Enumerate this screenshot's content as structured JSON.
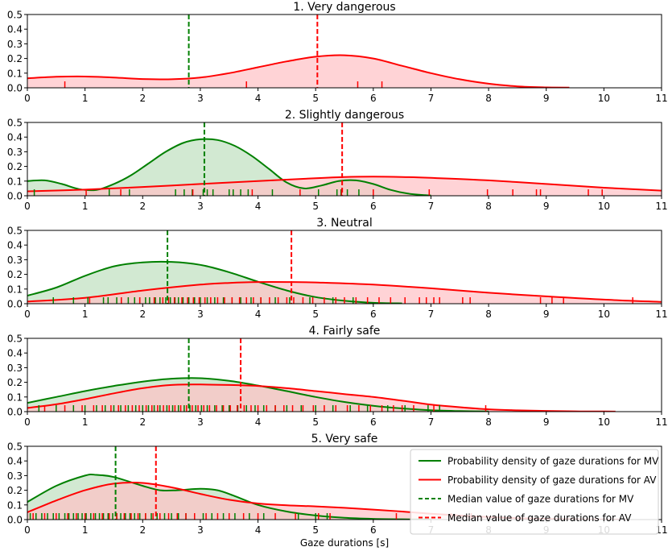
{
  "chart_data": {
    "type": "area",
    "xlabel": "Gaze durations [s]",
    "xlim": [
      0,
      11
    ],
    "ylim": [
      0,
      0.5
    ],
    "xticks": [
      0,
      1,
      2,
      3,
      4,
      5,
      6,
      7,
      8,
      9,
      10,
      11
    ],
    "yticks": [
      0.0,
      0.1,
      0.2,
      0.3,
      0.4,
      0.5
    ],
    "ytick_labels": [
      "0.0",
      "0.1",
      "0.2",
      "0.3",
      "0.4",
      "0.5"
    ],
    "colors": {
      "MV": "#008000",
      "AV": "#ff0000",
      "MV_fill": "#bfe0bf",
      "AV_fill": "#ffc0c4"
    },
    "legend": {
      "placement": "top-right of panel 5",
      "entries": [
        {
          "label": "Probability density of gaze durations for MV",
          "series": "MV",
          "style": "solid"
        },
        {
          "label": "Probability density of gaze durations for AV",
          "series": "AV",
          "style": "solid"
        },
        {
          "label": "Median value of gaze durations for MV",
          "series": "MV",
          "style": "dashed"
        },
        {
          "label": "Median value of gaze durations for AV",
          "series": "AV",
          "style": "dashed"
        }
      ]
    },
    "panels": [
      {
        "title": "1. Very dangerous",
        "series": [
          {
            "name": "AV",
            "median": 5.03,
            "x": [
              0,
              0.5,
              1,
              1.5,
              2,
              2.5,
              3,
              3.5,
              4,
              4.5,
              5,
              5.5,
              6,
              6.5,
              7,
              7.5,
              8,
              8.5,
              9,
              9.4
            ],
            "y": [
              0.065,
              0.075,
              0.077,
              0.07,
              0.06,
              0.058,
              0.07,
              0.1,
              0.14,
              0.18,
              0.212,
              0.222,
              0.2,
              0.15,
              0.1,
              0.058,
              0.028,
              0.01,
              0.003,
              0.001
            ],
            "rug": [
              0.65,
              3.8,
              5.73,
              6.15
            ]
          }
        ],
        "median_MV": 2.8
      },
      {
        "title": "2. Slightly dangerous",
        "series": [
          {
            "name": "MV",
            "median": 3.07,
            "x": [
              0,
              0.3,
              0.6,
              0.9,
              1.2,
              1.5,
              1.8,
              2.1,
              2.4,
              2.7,
              3.0,
              3.3,
              3.6,
              3.9,
              4.2,
              4.5,
              4.8,
              5.1,
              5.4,
              5.7,
              6.0,
              6.3,
              6.6,
              6.9,
              7.0
            ],
            "y": [
              0.1,
              0.105,
              0.08,
              0.045,
              0.04,
              0.08,
              0.14,
              0.22,
              0.3,
              0.36,
              0.385,
              0.38,
              0.34,
              0.27,
              0.18,
              0.09,
              0.05,
              0.07,
              0.1,
              0.105,
              0.08,
              0.04,
              0.015,
              0.004,
              0.002
            ],
            "rug": [
              0.12,
              1.42,
              1.77,
              2.57,
              2.72,
              2.86,
              3.05,
              3.12,
              3.22,
              3.5,
              3.57,
              3.7,
              3.83,
              4.25,
              5.05,
              5.37,
              5.44,
              5.55,
              5.75
            ]
          },
          {
            "name": "AV",
            "median": 5.46,
            "x": [
              0,
              1,
              2,
              3,
              4,
              5,
              5.5,
              6,
              6.5,
              7,
              8,
              9,
              10,
              11
            ],
            "y": [
              0.03,
              0.042,
              0.06,
              0.08,
              0.1,
              0.12,
              0.128,
              0.13,
              0.128,
              0.122,
              0.105,
              0.08,
              0.055,
              0.035
            ],
            "rug": [
              1.02,
              1.62,
              2.87,
              3.9,
              4.73,
              5.45,
              6.0,
              6.97,
              7.98,
              8.42,
              8.83,
              8.9,
              9.73,
              9.97
            ]
          }
        ]
      },
      {
        "title": "3. Neutral",
        "series": [
          {
            "name": "MV",
            "median": 2.43,
            "x": [
              0,
              0.5,
              1,
              1.5,
              2,
              2.5,
              3,
              3.5,
              4,
              4.5,
              5,
              5.5,
              6,
              6.5
            ],
            "y": [
              0.055,
              0.11,
              0.19,
              0.255,
              0.282,
              0.285,
              0.265,
              0.215,
              0.15,
              0.09,
              0.045,
              0.02,
              0.006,
              0.002
            ],
            "rug": [
              0.45,
              0.8,
              1.05,
              1.32,
              1.4,
              1.55,
              1.63,
              1.75,
              1.86,
              1.95,
              2.05,
              2.12,
              2.22,
              2.3,
              2.4,
              2.48,
              2.56,
              2.62,
              2.7,
              2.8,
              2.9,
              3.0,
              3.12,
              3.25,
              3.4,
              3.55,
              3.7,
              3.88,
              4.05,
              4.3,
              4.55,
              4.9,
              5.3,
              5.65
            ]
          },
          {
            "name": "AV",
            "median": 4.58,
            "x": [
              0,
              1,
              2,
              3,
              3.5,
              4,
              4.5,
              5,
              6,
              7,
              8,
              9,
              10,
              11
            ],
            "y": [
              0.015,
              0.04,
              0.09,
              0.13,
              0.142,
              0.148,
              0.148,
              0.145,
              0.13,
              0.105,
              0.075,
              0.05,
              0.028,
              0.012
            ],
            "rug": [
              1.08,
              1.63,
              1.95,
              2.2,
              2.35,
              2.45,
              2.55,
              2.68,
              2.78,
              2.88,
              2.98,
              3.08,
              3.18,
              3.3,
              3.42,
              3.55,
              3.68,
              3.8,
              3.92,
              4.05,
              4.2,
              4.35,
              4.5,
              4.62,
              4.78,
              4.95,
              5.15,
              5.35,
              5.5,
              5.7,
              5.9,
              6.1,
              6.3,
              6.55,
              6.8,
              6.92,
              7.05,
              7.15,
              7.55,
              7.68,
              8.9,
              9.1,
              9.3,
              10.5
            ]
          }
        ]
      },
      {
        "title": "4. Fairly safe",
        "series": [
          {
            "name": "MV",
            "median": 2.8,
            "x": [
              0,
              0.5,
              1,
              1.5,
              2,
              2.5,
              3,
              3.5,
              4,
              4.5,
              5,
              5.5,
              6,
              6.5,
              7,
              7.5,
              8
            ],
            "y": [
              0.06,
              0.1,
              0.14,
              0.175,
              0.205,
              0.225,
              0.228,
              0.21,
              0.178,
              0.14,
              0.1,
              0.066,
              0.04,
              0.022,
              0.01,
              0.004,
              0.001
            ],
            "rug": [
              0.2,
              0.5,
              0.8,
              1.0,
              1.2,
              1.35,
              1.5,
              1.62,
              1.75,
              1.88,
              2.0,
              2.1,
              2.2,
              2.3,
              2.42,
              2.52,
              2.62,
              2.72,
              2.82,
              2.92,
              3.02,
              3.12,
              3.25,
              3.38,
              3.5,
              3.65,
              3.8,
              3.95,
              4.1,
              4.3,
              4.5,
              4.75,
              5.0,
              5.3,
              5.6,
              5.9,
              6.25,
              6.55,
              6.95,
              7.15
            ]
          },
          {
            "name": "AV",
            "median": 3.7,
            "x": [
              0,
              0.5,
              1,
              1.5,
              2,
              2.5,
              3,
              3.5,
              4,
              4.5,
              5,
              5.5,
              6,
              6.5,
              7,
              7.5,
              8,
              8.5,
              9,
              9.5,
              10,
              10.2
            ],
            "y": [
              0.025,
              0.05,
              0.085,
              0.125,
              0.16,
              0.182,
              0.185,
              0.182,
              0.175,
              0.16,
              0.14,
              0.12,
              0.1,
              0.075,
              0.048,
              0.03,
              0.016,
              0.009,
              0.005,
              0.002,
              0.001,
              0.0005
            ],
            "rug": [
              0.3,
              0.65,
              0.95,
              1.15,
              1.3,
              1.45,
              1.58,
              1.7,
              1.82,
              1.94,
              2.06,
              2.16,
              2.26,
              2.36,
              2.46,
              2.56,
              2.66,
              2.76,
              2.86,
              2.96,
              3.06,
              3.16,
              3.28,
              3.4,
              3.52,
              3.64,
              3.76,
              3.88,
              4.0,
              4.15,
              4.3,
              4.45,
              4.6,
              4.78,
              4.96,
              5.15,
              5.35,
              5.55,
              5.75,
              5.95,
              6.15,
              6.35,
              6.5,
              6.7,
              7.05,
              7.95
            ]
          }
        ]
      },
      {
        "title": "5. Very safe",
        "series": [
          {
            "name": "MV",
            "median": 1.53,
            "x": [
              0,
              0.5,
              1,
              1.2,
              1.5,
              2,
              2.3,
              2.6,
              3,
              3.3,
              3.6,
              4,
              4.5,
              5,
              5.5,
              6,
              6.5,
              7
            ],
            "y": [
              0.12,
              0.23,
              0.3,
              0.305,
              0.29,
              0.23,
              0.2,
              0.2,
              0.21,
              0.2,
              0.16,
              0.1,
              0.055,
              0.028,
              0.012,
              0.005,
              0.002,
              0.001
            ],
            "rug": [
              0.05,
              0.15,
              0.25,
              0.35,
              0.45,
              0.55,
              0.65,
              0.72,
              0.8,
              0.88,
              0.95,
              1.02,
              1.1,
              1.18,
              1.25,
              1.32,
              1.4,
              1.48,
              1.55,
              1.62,
              1.7,
              1.78,
              1.86,
              1.95,
              2.05,
              2.15,
              2.25,
              2.38,
              2.5,
              2.62,
              2.75,
              2.9,
              3.05,
              3.2,
              3.4,
              3.6,
              3.85,
              4.1,
              4.7,
              5.0,
              5.2
            ]
          },
          {
            "name": "AV",
            "median": 2.23,
            "x": [
              0,
              0.5,
              1,
              1.5,
              2,
              2.5,
              3,
              3.5,
              4,
              4.5,
              5,
              5.5,
              6,
              6.5,
              7,
              7.5,
              8,
              8.5,
              9,
              9.5,
              10,
              10.4
            ],
            "y": [
              0.05,
              0.13,
              0.2,
              0.245,
              0.25,
              0.22,
              0.175,
              0.135,
              0.11,
              0.098,
              0.09,
              0.08,
              0.068,
              0.055,
              0.04,
              0.028,
              0.018,
              0.01,
              0.005,
              0.002,
              0.001,
              0.0005
            ],
            "rug": [
              0.1,
              0.3,
              0.5,
              0.7,
              0.85,
              1.0,
              1.15,
              1.3,
              1.42,
              1.55,
              1.68,
              1.8,
              1.92,
              2.05,
              2.18,
              2.3,
              2.45,
              2.6,
              2.75,
              2.9,
              3.1,
              3.3,
              3.5,
              3.75,
              4.0,
              4.3,
              4.65,
              5.05,
              5.25,
              6.4,
              6.65,
              7.35,
              7.7
            ]
          }
        ]
      }
    ]
  }
}
